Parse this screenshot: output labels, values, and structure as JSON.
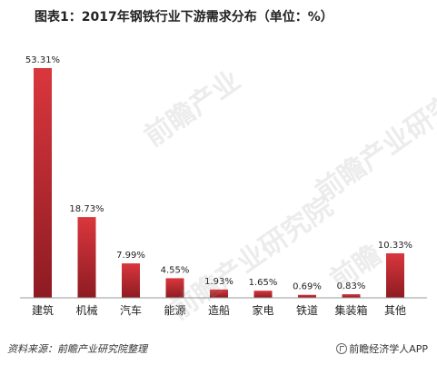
{
  "title": "图表1：2017年钢铁行业下游需求分布（单位：%）",
  "footer": {
    "source": "资料来源：前瞻产业研究院整理",
    "brand": "前瞻经济学人APP"
  },
  "colors": {
    "bar_top": "#d9373d",
    "bar_bottom": "#8e1b22",
    "axis": "#999999"
  },
  "chart_data": {
    "type": "bar",
    "categories": [
      "建筑",
      "机械",
      "汽车",
      "能源",
      "造船",
      "家电",
      "铁道",
      "集装箱",
      "其他"
    ],
    "values": [
      53.31,
      18.73,
      7.99,
      4.55,
      1.93,
      1.65,
      0.69,
      0.83,
      10.33
    ],
    "value_labels": [
      "53.31%",
      "18.73%",
      "7.99%",
      "4.55%",
      "1.93%",
      "1.65%",
      "0.69%",
      "0.83%",
      "10.33%"
    ],
    "ylim": [
      0,
      53.31
    ],
    "grid": false,
    "legend": "none"
  }
}
